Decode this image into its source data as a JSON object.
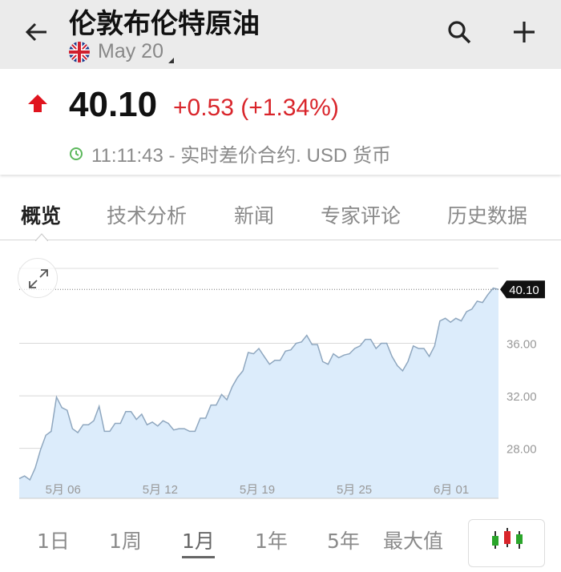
{
  "header": {
    "title": "伦敦布伦特原油",
    "contract": "May 20",
    "flag": "uk-flag",
    "back_icon": "arrow-left-icon",
    "search_icon": "search-icon",
    "add_icon": "plus-icon"
  },
  "quote": {
    "last": "40.10",
    "change": "+0.53 (+1.34%)",
    "time": "11:11:43 - 实时差价合约. USD 货币",
    "direction": "up",
    "up_color": "#d9252b",
    "clock_color": "#5cb85c"
  },
  "tabs": [
    {
      "label": "概览",
      "active": true
    },
    {
      "label": "技术分析"
    },
    {
      "label": "新闻"
    },
    {
      "label": "专家评论"
    },
    {
      "label": "历史数据"
    }
  ],
  "ranges": [
    {
      "label": "1日"
    },
    {
      "label": "1周"
    },
    {
      "label": "1月",
      "active": true
    },
    {
      "label": "1年"
    },
    {
      "label": "5年"
    },
    {
      "label": "最大值"
    }
  ],
  "chart_data": {
    "type": "area",
    "last_label": "40.10",
    "ylim": [
      24.2,
      41.7
    ],
    "yticks": [
      "28.00",
      "32.00",
      "36.00"
    ],
    "ytick_values": [
      28,
      32,
      36
    ],
    "xticks": [
      "5月 06",
      "5月 12",
      "5月 19",
      "5月 25",
      "6月 01"
    ],
    "grid": true,
    "line_color": "#8fa7bf",
    "fill_color": "#dcecfb",
    "values": [
      25.7,
      25.9,
      25.6,
      26.5,
      27.9,
      29.0,
      29.3,
      31.9,
      31.1,
      30.9,
      29.5,
      29.2,
      29.8,
      29.8,
      30.1,
      31.2,
      29.3,
      29.3,
      29.9,
      29.9,
      30.8,
      30.8,
      30.2,
      30.6,
      29.8,
      30.0,
      29.7,
      30.1,
      29.9,
      29.4,
      29.5,
      29.5,
      29.3,
      29.3,
      30.3,
      30.3,
      31.3,
      31.3,
      32.1,
      31.7,
      32.7,
      33.4,
      33.9,
      35.3,
      35.2,
      35.6,
      35.0,
      34.4,
      34.7,
      34.7,
      35.4,
      35.5,
      36.0,
      36.1,
      36.6,
      35.9,
      35.9,
      34.6,
      34.4,
      35.2,
      34.9,
      35.1,
      35.2,
      35.6,
      35.8,
      36.3,
      36.3,
      35.6,
      36.0,
      36.0,
      35.0,
      34.3,
      33.9,
      34.6,
      35.8,
      35.6,
      35.6,
      35.0,
      35.8,
      37.7,
      37.9,
      37.6,
      37.9,
      37.7,
      38.4,
      38.6,
      39.2,
      39.1,
      39.7,
      40.2,
      40.1
    ]
  },
  "icons": {
    "expand": "expand-icon",
    "chart_type": "candlestick-icon"
  }
}
